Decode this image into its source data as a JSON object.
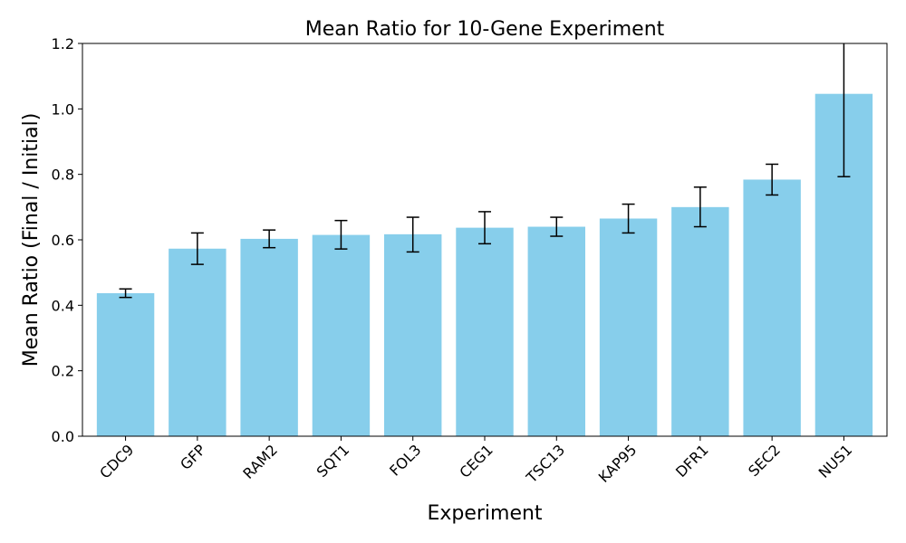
{
  "chart_data": {
    "type": "bar",
    "title": "Mean Ratio for 10-Gene Experiment",
    "xlabel": "Experiment",
    "ylabel": "Mean Ratio (Final / Initial)",
    "ylim": [
      0,
      1.2
    ],
    "yticks": [
      "0.0",
      "0.2",
      "0.4",
      "0.6",
      "0.8",
      "1.0",
      "1.2"
    ],
    "grid": false,
    "legend": null,
    "bar_color": "#87CEEB",
    "categories": [
      "CDC9",
      "GFP",
      "RAM2",
      "SQT1",
      "FOL3",
      "CEG1",
      "TSC13",
      "KAP95",
      "DFR1",
      "SEC2",
      "NUS1"
    ],
    "values": [
      0.437,
      0.573,
      0.603,
      0.615,
      0.617,
      0.637,
      0.64,
      0.665,
      0.7,
      0.784,
      1.046
    ],
    "error_lower": [
      0.424,
      0.525,
      0.576,
      0.572,
      0.563,
      0.588,
      0.611,
      0.621,
      0.64,
      0.737,
      0.793
    ],
    "error_upper": [
      0.45,
      0.621,
      0.63,
      0.659,
      0.669,
      0.686,
      0.669,
      0.709,
      0.761,
      0.831,
      1.22
    ]
  }
}
